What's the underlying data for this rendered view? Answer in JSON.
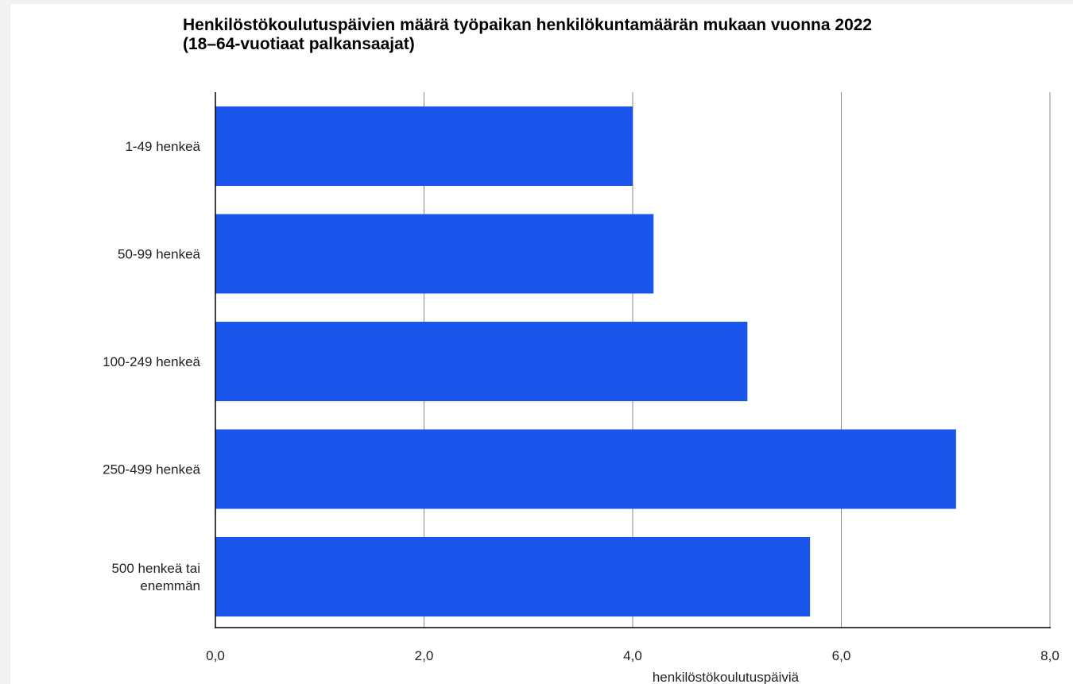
{
  "chart_data": {
    "type": "bar",
    "orientation": "horizontal",
    "title_lines": [
      "Henkilöstökoulutuspäivien määrä työpaikan henkilökuntamäärän mukaan vuonna 2022",
      "(18–64-vuotiaat palkansaajat)"
    ],
    "categories": [
      [
        "1-49 henkeä"
      ],
      [
        "50-99 henkeä"
      ],
      [
        "100-249 henkeä"
      ],
      [
        "250-499 henkeä"
      ],
      [
        "500 henkeä tai",
        "enemmän"
      ]
    ],
    "values": [
      4.0,
      4.2,
      5.1,
      7.1,
      5.7
    ],
    "xlabel": "henkilöstökoulutuspäiviä",
    "xlim": [
      0,
      8
    ],
    "xticks": [
      "0,0",
      "2,0",
      "4,0",
      "6,0",
      "8,0"
    ],
    "grid": true,
    "bar_color": "#1a56ec"
  }
}
